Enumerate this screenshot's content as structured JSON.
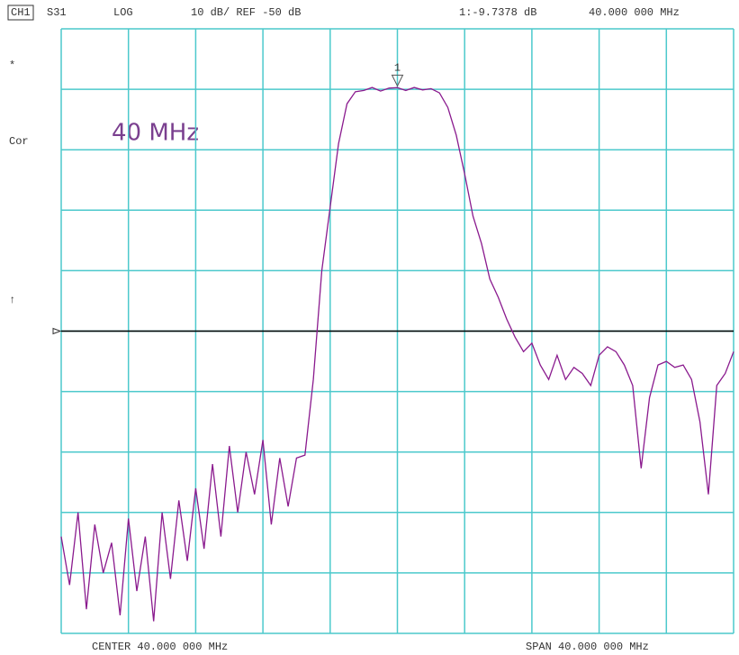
{
  "chart_data": {
    "type": "line",
    "header": {
      "channel": "CH1",
      "param": "S31",
      "format": "LOG",
      "scale": "10 dB/ REF -50 dB",
      "marker_readout": "1:-9.7378 dB",
      "marker_freq": "40.000 000 MHz"
    },
    "side_labels": [
      "*",
      "Cor",
      "↑"
    ],
    "annotation": "40 MHz",
    "footer": {
      "center": "CENTER  40.000 000 MHz",
      "span": "SPAN  40.000 000 MHz"
    },
    "x": [
      20,
      20.5,
      21,
      21.5,
      22,
      22.5,
      23,
      23.5,
      24,
      24.5,
      25,
      25.5,
      26,
      26.5,
      27,
      27.5,
      28,
      28.5,
      29,
      29.5,
      30,
      30.5,
      31,
      31.5,
      32,
      32.5,
      33,
      33.5,
      34,
      34.5,
      35,
      35.5,
      36,
      36.5,
      37,
      37.5,
      38,
      38.5,
      39,
      39.5,
      40,
      40.5,
      41,
      41.5,
      42,
      42.5,
      43,
      43.5,
      44,
      44.5,
      45,
      45.5,
      46,
      46.5,
      47,
      47.5,
      48,
      48.5,
      49,
      49.5,
      50,
      50.5,
      51,
      51.5,
      52,
      52.5,
      53,
      53.5,
      54,
      54.5,
      55,
      55.5,
      56,
      56.5,
      57,
      57.5,
      58,
      58.5,
      59,
      59.5,
      60
    ],
    "series": [
      {
        "color": "#8a1a8e",
        "values": [
          -84,
          -92,
          -80,
          -96,
          -82,
          -90,
          -85,
          -97,
          -81,
          -93,
          -84,
          -98,
          -80,
          -91,
          -78,
          -88,
          -76,
          -86,
          -72,
          -84,
          -69,
          -80,
          -70,
          -77,
          -68,
          -82,
          -71,
          -79,
          -71,
          -70.5,
          -58,
          -40,
          -29.5,
          -19,
          -12.4,
          -10.4,
          -10.2,
          -9.7,
          -10.3,
          -9.8,
          -9.7378,
          -10.2,
          -9.7,
          -10.1,
          -9.9,
          -10.6,
          -13,
          -17.6,
          -24,
          -31,
          -35.5,
          -41.4,
          -44.4,
          -48,
          -51,
          -53.4,
          -52,
          -55.6,
          -58,
          -54,
          -58,
          -56,
          -57,
          -59,
          -54,
          -52.6,
          -53.4,
          -55.6,
          -59,
          -72.7,
          -61,
          -55.6,
          -55,
          -56,
          -55.6,
          -58,
          -65,
          -77,
          -59,
          -57,
          -53.4
        ]
      }
    ],
    "xlim": [
      20,
      60
    ],
    "xticks": [
      20,
      24,
      28,
      32,
      36,
      40,
      44,
      48,
      52,
      56,
      60
    ],
    "ylim": [
      -100,
      0
    ],
    "yticks": [
      -100,
      -90,
      -80,
      -70,
      -60,
      -50,
      -40,
      -30,
      -20,
      -10,
      0
    ],
    "grid_color": "#4cc9cc",
    "reference": -50,
    "marker": {
      "label": "1",
      "x": 40,
      "value": -9.7378
    }
  }
}
